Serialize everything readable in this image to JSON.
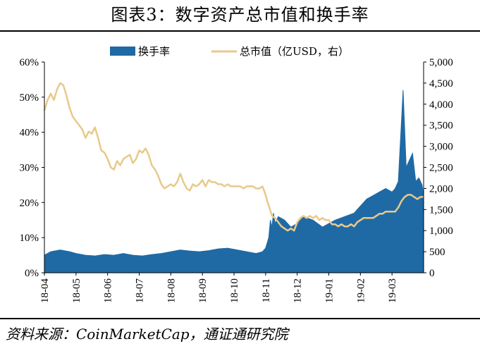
{
  "title": "图表3：数字资产总市值和换手率",
  "source": "资料来源：CoinMarketCap，通证通研究院",
  "colors": {
    "bar": "#1f6aa5",
    "line": "#e8c98a"
  },
  "chart_data": {
    "type": "bar+line",
    "legend": [
      "换手率",
      "总市值（亿USD，右）"
    ],
    "legend_position": "top-center",
    "x_tick_labels": [
      "18-04",
      "18-05",
      "18-06",
      "18-07",
      "18-08",
      "18-09",
      "18-10",
      "18-11",
      "18-12",
      "19-01",
      "19-02",
      "19-03"
    ],
    "y_left": {
      "ticks": [
        "0%",
        "10%",
        "20%",
        "30%",
        "40%",
        "50%",
        "60%"
      ],
      "range": [
        0,
        0.6
      ]
    },
    "y_right": {
      "ticks": [
        "0",
        "500",
        "1,000",
        "1,500",
        "2,000",
        "2,500",
        "3,000",
        "3,500",
        "4,000",
        "4,500",
        "5,000"
      ],
      "range": [
        0,
        5000
      ]
    },
    "series": [
      {
        "name": "换手率",
        "type": "bar",
        "axis": "left",
        "points": [
          [
            0,
            0.05
          ],
          [
            0.2,
            0.06
          ],
          [
            0.5,
            0.065
          ],
          [
            0.8,
            0.06
          ],
          [
            1.0,
            0.055
          ],
          [
            1.3,
            0.05
          ],
          [
            1.6,
            0.048
          ],
          [
            1.9,
            0.052
          ],
          [
            2.2,
            0.05
          ],
          [
            2.5,
            0.055
          ],
          [
            2.8,
            0.05
          ],
          [
            3.1,
            0.048
          ],
          [
            3.4,
            0.052
          ],
          [
            3.7,
            0.055
          ],
          [
            4.0,
            0.06
          ],
          [
            4.3,
            0.065
          ],
          [
            4.6,
            0.062
          ],
          [
            4.9,
            0.06
          ],
          [
            5.2,
            0.063
          ],
          [
            5.5,
            0.068
          ],
          [
            5.8,
            0.07
          ],
          [
            6.1,
            0.065
          ],
          [
            6.4,
            0.06
          ],
          [
            6.7,
            0.055
          ],
          [
            6.9,
            0.06
          ],
          [
            7.0,
            0.07
          ],
          [
            7.1,
            0.1
          ],
          [
            7.15,
            0.15
          ],
          [
            7.2,
            0.13
          ],
          [
            7.25,
            0.17
          ],
          [
            7.3,
            0.14
          ],
          [
            7.4,
            0.16
          ],
          [
            7.6,
            0.15
          ],
          [
            7.8,
            0.13
          ],
          [
            8.0,
            0.14
          ],
          [
            8.2,
            0.16
          ],
          [
            8.5,
            0.15
          ],
          [
            8.8,
            0.13
          ],
          [
            9.0,
            0.14
          ],
          [
            9.2,
            0.15
          ],
          [
            9.5,
            0.16
          ],
          [
            9.8,
            0.17
          ],
          [
            10.0,
            0.19
          ],
          [
            10.2,
            0.21
          ],
          [
            10.4,
            0.22
          ],
          [
            10.6,
            0.23
          ],
          [
            10.8,
            0.24
          ],
          [
            11.0,
            0.23
          ],
          [
            11.1,
            0.24
          ],
          [
            11.2,
            0.26
          ],
          [
            11.35,
            0.52
          ],
          [
            11.45,
            0.3
          ],
          [
            11.55,
            0.32
          ],
          [
            11.65,
            0.34
          ],
          [
            11.75,
            0.26
          ],
          [
            11.85,
            0.27
          ],
          [
            11.95,
            0.25
          ],
          [
            12.0,
            0.22
          ]
        ]
      },
      {
        "name": "总市值（亿USD，右）",
        "type": "line",
        "axis": "right",
        "points": [
          [
            0,
            3850
          ],
          [
            0.1,
            4100
          ],
          [
            0.2,
            4250
          ],
          [
            0.3,
            4100
          ],
          [
            0.4,
            4350
          ],
          [
            0.5,
            4500
          ],
          [
            0.6,
            4450
          ],
          [
            0.7,
            4200
          ],
          [
            0.8,
            3900
          ],
          [
            0.9,
            3700
          ],
          [
            1.0,
            3600
          ],
          [
            1.1,
            3500
          ],
          [
            1.2,
            3400
          ],
          [
            1.3,
            3200
          ],
          [
            1.4,
            3350
          ],
          [
            1.5,
            3300
          ],
          [
            1.6,
            3450
          ],
          [
            1.7,
            3200
          ],
          [
            1.8,
            2900
          ],
          [
            1.9,
            2850
          ],
          [
            2.0,
            2700
          ],
          [
            2.1,
            2500
          ],
          [
            2.2,
            2450
          ],
          [
            2.3,
            2650
          ],
          [
            2.4,
            2550
          ],
          [
            2.5,
            2700
          ],
          [
            2.6,
            2750
          ],
          [
            2.7,
            2800
          ],
          [
            2.8,
            2600
          ],
          [
            2.9,
            2700
          ],
          [
            3.0,
            2900
          ],
          [
            3.1,
            2850
          ],
          [
            3.2,
            2950
          ],
          [
            3.3,
            2800
          ],
          [
            3.4,
            2550
          ],
          [
            3.5,
            2450
          ],
          [
            3.6,
            2300
          ],
          [
            3.7,
            2100
          ],
          [
            3.8,
            2000
          ],
          [
            3.9,
            2050
          ],
          [
            4.0,
            2100
          ],
          [
            4.1,
            2050
          ],
          [
            4.2,
            2150
          ],
          [
            4.3,
            2350
          ],
          [
            4.4,
            2150
          ],
          [
            4.5,
            2000
          ],
          [
            4.6,
            1950
          ],
          [
            4.7,
            2100
          ],
          [
            4.8,
            2050
          ],
          [
            4.9,
            2100
          ],
          [
            5.0,
            2200
          ],
          [
            5.1,
            2050
          ],
          [
            5.2,
            2200
          ],
          [
            5.3,
            2150
          ],
          [
            5.4,
            2150
          ],
          [
            5.5,
            2100
          ],
          [
            5.6,
            2100
          ],
          [
            5.7,
            2050
          ],
          [
            5.8,
            2100
          ],
          [
            5.9,
            2050
          ],
          [
            6.0,
            2050
          ],
          [
            6.1,
            2050
          ],
          [
            6.2,
            2050
          ],
          [
            6.3,
            2000
          ],
          [
            6.4,
            2050
          ],
          [
            6.5,
            2050
          ],
          [
            6.6,
            2050
          ],
          [
            6.7,
            2000
          ],
          [
            6.8,
            2000
          ],
          [
            6.9,
            2050
          ],
          [
            7.0,
            1850
          ],
          [
            7.05,
            1700
          ],
          [
            7.1,
            1600
          ],
          [
            7.2,
            1350
          ],
          [
            7.3,
            1300
          ],
          [
            7.4,
            1200
          ],
          [
            7.5,
            1100
          ],
          [
            7.6,
            1050
          ],
          [
            7.7,
            1000
          ],
          [
            7.8,
            1050
          ],
          [
            7.9,
            1000
          ],
          [
            8.0,
            1200
          ],
          [
            8.1,
            1300
          ],
          [
            8.2,
            1350
          ],
          [
            8.3,
            1300
          ],
          [
            8.4,
            1350
          ],
          [
            8.5,
            1300
          ],
          [
            8.6,
            1350
          ],
          [
            8.7,
            1250
          ],
          [
            8.8,
            1300
          ],
          [
            8.9,
            1250
          ],
          [
            9.0,
            1250
          ],
          [
            9.1,
            1150
          ],
          [
            9.2,
            1150
          ],
          [
            9.3,
            1100
          ],
          [
            9.4,
            1150
          ],
          [
            9.5,
            1100
          ],
          [
            9.6,
            1100
          ],
          [
            9.7,
            1150
          ],
          [
            9.8,
            1100
          ],
          [
            9.9,
            1200
          ],
          [
            10.0,
            1250
          ],
          [
            10.1,
            1300
          ],
          [
            10.2,
            1300
          ],
          [
            10.3,
            1300
          ],
          [
            10.4,
            1300
          ],
          [
            10.5,
            1350
          ],
          [
            10.6,
            1400
          ],
          [
            10.7,
            1400
          ],
          [
            10.8,
            1450
          ],
          [
            10.9,
            1450
          ],
          [
            11.0,
            1450
          ],
          [
            11.1,
            1450
          ],
          [
            11.2,
            1550
          ],
          [
            11.3,
            1700
          ],
          [
            11.4,
            1800
          ],
          [
            11.5,
            1850
          ],
          [
            11.6,
            1850
          ],
          [
            11.7,
            1800
          ],
          [
            11.8,
            1750
          ],
          [
            11.9,
            1800
          ],
          [
            12.0,
            1800
          ]
        ]
      }
    ]
  }
}
